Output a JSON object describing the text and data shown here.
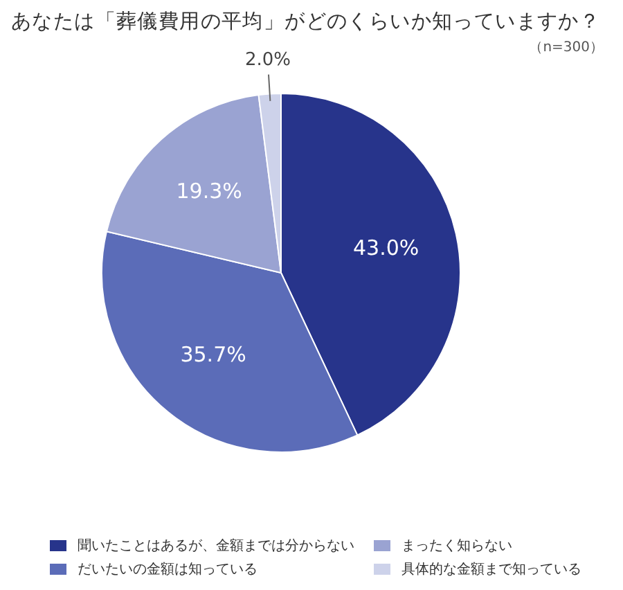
{
  "chart_data": {
    "type": "pie",
    "title": "あなたは「葬儀費用の平均」がどのくらいか知っていますか？",
    "annotations": [
      "（n=300）"
    ],
    "categories": [
      "聞いたことはあるが、金額までは分からない",
      "だいたいの金額は知っている",
      "まったく知らない",
      "具体的な金額まで知っている"
    ],
    "values": [
      43.0,
      35.7,
      19.3,
      2.0
    ],
    "value_labels": [
      "43.0%",
      "35.7%",
      "19.3%",
      "2.0%"
    ],
    "colors": [
      "#27348b",
      "#5b6cb8",
      "#9aa3d2",
      "#cdd2ea"
    ],
    "legend": "bottom"
  }
}
